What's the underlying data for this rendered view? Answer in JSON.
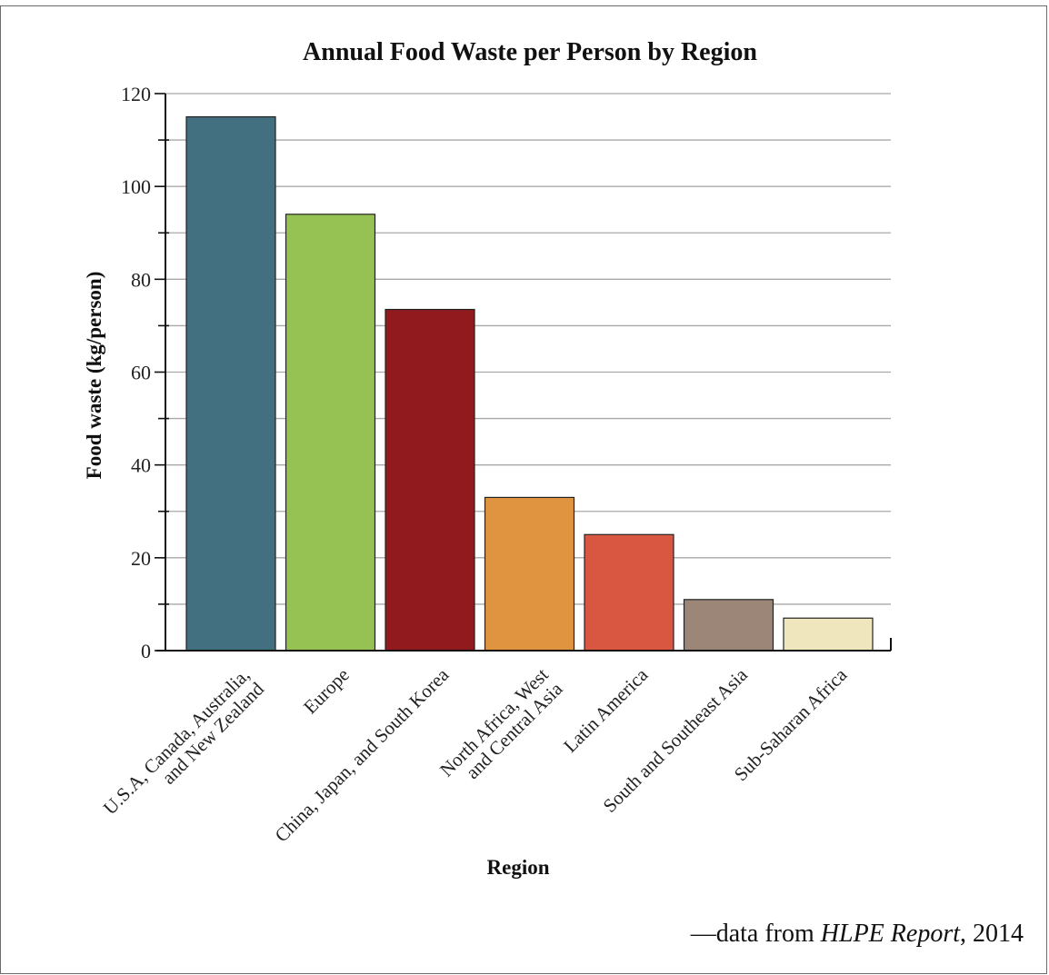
{
  "chart_data": {
    "type": "bar",
    "title": "Annual Food Waste per Person by Region",
    "xlabel": "Region",
    "ylabel": "Food waste (kg/person)",
    "ylim": [
      0,
      120
    ],
    "yticks": [
      "0",
      "20",
      "40",
      "60",
      "80",
      "100",
      "120"
    ],
    "grid": true,
    "categories": [
      [
        "U.S.A, Canada, Australia,",
        "and New Zealand"
      ],
      [
        "Europe"
      ],
      [
        "China, Japan, and South Korea"
      ],
      [
        "North Africa, West",
        "and Central Asia"
      ],
      [
        "Latin America"
      ],
      [
        "South and Southeast Asia"
      ],
      [
        "Sub-Saharan Africa"
      ]
    ],
    "values": [
      115,
      94,
      73.5,
      33,
      25,
      11,
      7
    ],
    "colors": [
      "#437080",
      "#96c153",
      "#911a1e",
      "#e09440",
      "#d95740",
      "#9b8678",
      "#efe6bd"
    ]
  },
  "source": {
    "prefix": "—data from ",
    "report": "HLPE Report",
    "suffix": ", 2014"
  }
}
